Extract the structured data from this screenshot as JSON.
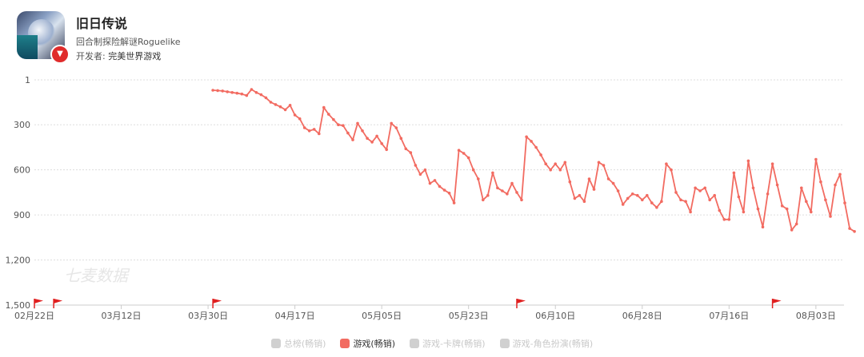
{
  "app": {
    "title": "旧日传说",
    "subtitle": "回合制探险解谜Roguelike",
    "developer_label": "开发者:",
    "developer": "完美世界游戏"
  },
  "watermark": "七麦数据",
  "legend": [
    {
      "label": "总榜(畅销)",
      "active": false
    },
    {
      "label": "游戏(畅销)",
      "active": true
    },
    {
      "label": "游戏-卡牌(畅销)",
      "active": false
    },
    {
      "label": "游戏-角色扮演(畅销)",
      "active": false
    }
  ],
  "colors": {
    "line": "#f26b61",
    "flag": "#e02020",
    "grid": "#dddddd"
  },
  "chart_data": {
    "type": "line",
    "y_inverted": true,
    "ylim": [
      1,
      1500
    ],
    "yticks": [
      "1",
      "300",
      "600",
      "900",
      "1,200",
      "1,500"
    ],
    "xticks": [
      "02月22日",
      "03月12日",
      "03月30日",
      "04月17日",
      "05月05日",
      "05月23日",
      "06月10日",
      "06月28日",
      "07月16日",
      "08月03日"
    ],
    "xtick_dates": [
      "2023-02-22",
      "2023-03-12",
      "2023-03-30",
      "2023-04-17",
      "2023-05-05",
      "2023-05-23",
      "2023-06-10",
      "2023-06-28",
      "2023-07-16",
      "2023-08-03"
    ],
    "flag_dates": [
      "2023-02-22",
      "2023-02-26",
      "2023-03-31",
      "2023-06-02",
      "2023-07-25"
    ],
    "series": [
      {
        "name": "游戏(畅销)",
        "start_date": "2023-03-31",
        "ranks": [
          70,
          72,
          75,
          80,
          85,
          90,
          95,
          105,
          65,
          85,
          100,
          120,
          150,
          165,
          180,
          200,
          170,
          235,
          260,
          320,
          340,
          330,
          360,
          185,
          230,
          265,
          300,
          305,
          355,
          400,
          290,
          340,
          390,
          415,
          375,
          425,
          465,
          290,
          320,
          390,
          460,
          485,
          570,
          630,
          600,
          690,
          670,
          710,
          735,
          755,
          820,
          470,
          490,
          520,
          600,
          660,
          800,
          770,
          620,
          720,
          740,
          760,
          690,
          750,
          800,
          380,
          410,
          450,
          500,
          560,
          600,
          560,
          600,
          550,
          680,
          790,
          770,
          810,
          660,
          730,
          550,
          570,
          660,
          690,
          740,
          830,
          790,
          760,
          770,
          800,
          770,
          820,
          850,
          810,
          560,
          600,
          750,
          800,
          810,
          880,
          720,
          740,
          720,
          800,
          770,
          870,
          930,
          930,
          620,
          780,
          880,
          540,
          720,
          860,
          980,
          760,
          560,
          700,
          840,
          860,
          1000,
          960,
          720,
          810,
          880,
          530,
          680,
          800,
          910,
          700,
          630,
          820,
          990,
          1010
        ]
      }
    ]
  }
}
